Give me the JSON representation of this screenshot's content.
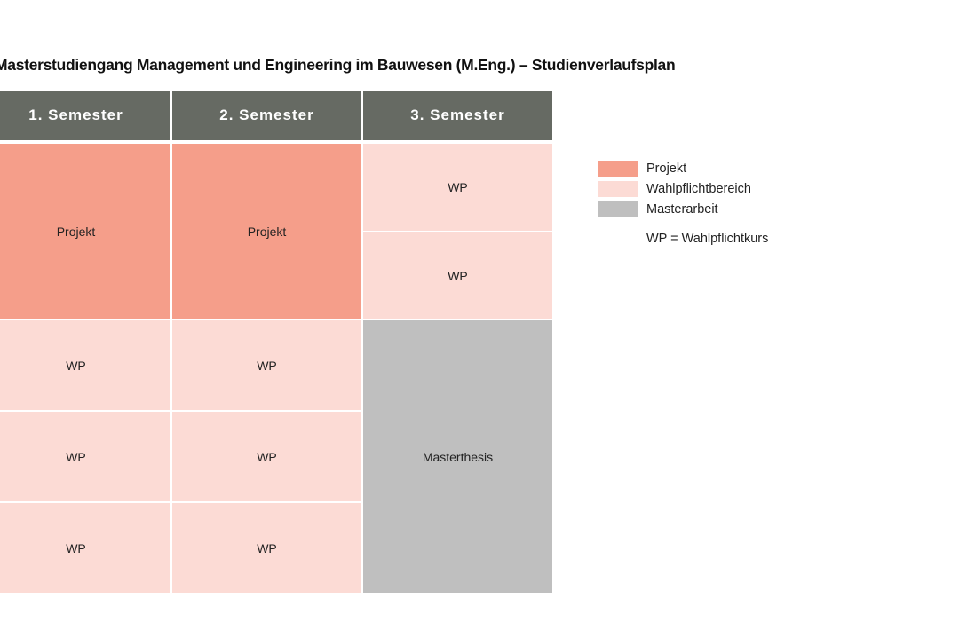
{
  "title": "Masterstudiengang Management und Engineering im Bauwesen (M.Eng.) – Studienverlaufsplan",
  "colors": {
    "header": "#666a63",
    "projekt": "#f59e8a",
    "wahlpflicht": "#fcdbd5",
    "masterarbeit": "#bfbfbf"
  },
  "headers": [
    "1.   Semester",
    "2. Semester",
    "3. Semester"
  ],
  "semester1": {
    "projekt": "Projekt",
    "wp1": "WP",
    "wp2": "WP",
    "wp3": "WP"
  },
  "semester2": {
    "projekt": "Projekt",
    "wp1": "WP",
    "wp2": "WP",
    "wp3": "WP"
  },
  "semester3": {
    "wp1": "WP",
    "wp2": "WP",
    "thesis": "Masterthesis"
  },
  "legend": {
    "items": [
      {
        "label": "Projekt"
      },
      {
        "label": "Wahlpflichtbereich"
      },
      {
        "label": "Masterarbeit"
      }
    ],
    "note": "WP = Wahlpflichtkurs"
  }
}
